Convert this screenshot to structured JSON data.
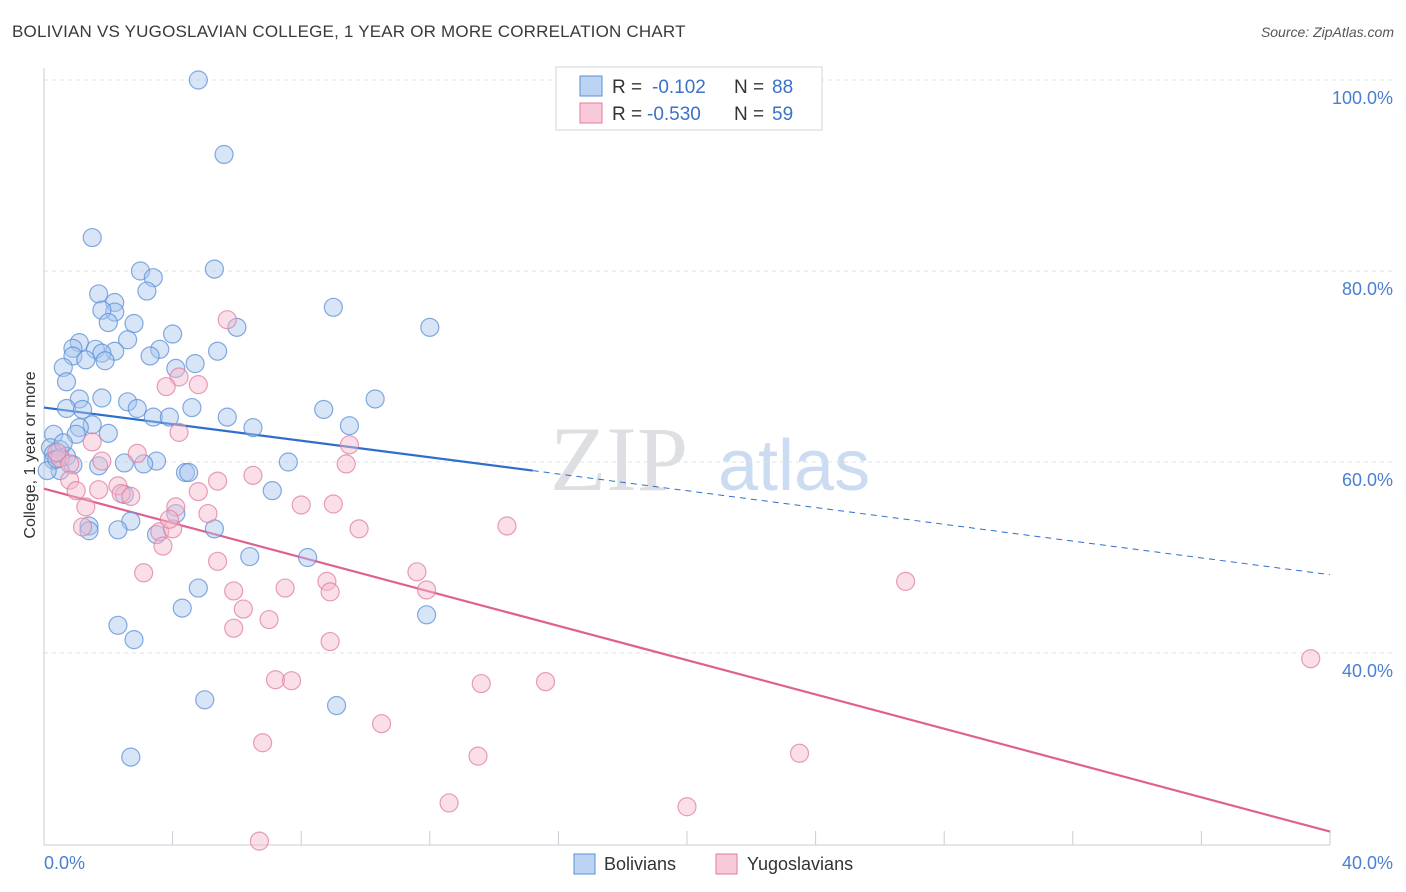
{
  "title": "BOLIVIAN VS YUGOSLAVIAN COLLEGE, 1 YEAR OR MORE CORRELATION CHART",
  "source": "Source: ZipAtlas.com",
  "watermark": {
    "zip": "ZIP",
    "atlas": "atlas"
  },
  "colors": {
    "blue_fill": "#a9c6ee",
    "blue_stroke": "#5b8fd6",
    "blue_line": "#2f6fcc",
    "pink_fill": "#f4b8cb",
    "pink_stroke": "#e07d9f",
    "pink_line": "#e0608f",
    "axis_text": "#4a7fd0",
    "grid": "#dde3ea"
  },
  "legend": {
    "rows": [
      {
        "r_label": "R =",
        "r_value": "-0.102",
        "n_label": "N =",
        "n_value": "88",
        "series": "blue"
      },
      {
        "r_label": "R =",
        "r_value": "-0.530",
        "n_label": "N =",
        "n_value": "59",
        "series": "pink"
      }
    ]
  },
  "bottom_legend": [
    {
      "label": "Bolivians",
      "series": "blue"
    },
    {
      "label": "Yugoslavians",
      "series": "pink"
    }
  ],
  "chart_data": {
    "type": "scatter",
    "title": "BOLIVIAN VS YUGOSLAVIAN COLLEGE, 1 YEAR OR MORE CORRELATION CHART",
    "xlabel": "",
    "ylabel": "College, 1 year or more",
    "xlim": [
      0,
      40
    ],
    "ylim": [
      20,
      103
    ],
    "x_tick_labels": [
      "0.0%",
      "40.0%"
    ],
    "y_ticks": [
      40,
      60,
      80,
      100
    ],
    "y_tick_labels": [
      "40.0%",
      "60.0%",
      "80.0%",
      "100.0%"
    ],
    "grid": true,
    "series": [
      {
        "name": "Bolivians",
        "color": "blue",
        "trend": {
          "x0": 0,
          "y0": 65.7,
          "x1": 15.2,
          "y1": 59.1,
          "dash_to_x": 40,
          "dash_to_y": 48.2
        },
        "points": [
          [
            4.8,
            100
          ],
          [
            5.6,
            92.2
          ],
          [
            1.5,
            83.5
          ],
          [
            5.3,
            80.2
          ],
          [
            3.0,
            80.0
          ],
          [
            3.4,
            79.3
          ],
          [
            3.2,
            77.9
          ],
          [
            1.7,
            77.6
          ],
          [
            2.2,
            76.7
          ],
          [
            2.2,
            75.7
          ],
          [
            1.8,
            75.9
          ],
          [
            2.0,
            74.6
          ],
          [
            2.8,
            74.5
          ],
          [
            9.0,
            76.2
          ],
          [
            12.0,
            74.1
          ],
          [
            6.0,
            74.1
          ],
          [
            4.0,
            73.4
          ],
          [
            2.6,
            72.8
          ],
          [
            1.1,
            72.5
          ],
          [
            0.9,
            71.9
          ],
          [
            1.6,
            71.8
          ],
          [
            2.2,
            71.6
          ],
          [
            1.8,
            71.4
          ],
          [
            3.6,
            71.8
          ],
          [
            5.4,
            71.6
          ],
          [
            3.3,
            71.1
          ],
          [
            0.9,
            71.1
          ],
          [
            1.3,
            70.7
          ],
          [
            1.9,
            70.6
          ],
          [
            4.7,
            70.3
          ],
          [
            4.1,
            69.8
          ],
          [
            0.6,
            69.9
          ],
          [
            0.7,
            68.4
          ],
          [
            1.8,
            66.7
          ],
          [
            1.1,
            66.6
          ],
          [
            10.3,
            66.6
          ],
          [
            2.6,
            66.3
          ],
          [
            0.7,
            65.6
          ],
          [
            1.2,
            65.5
          ],
          [
            2.9,
            65.6
          ],
          [
            4.6,
            65.7
          ],
          [
            8.7,
            65.5
          ],
          [
            3.4,
            64.7
          ],
          [
            3.9,
            64.7
          ],
          [
            5.7,
            64.7
          ],
          [
            1.5,
            63.9
          ],
          [
            1.1,
            63.6
          ],
          [
            6.5,
            63.6
          ],
          [
            9.5,
            63.8
          ],
          [
            2.0,
            63.0
          ],
          [
            0.3,
            62.9
          ],
          [
            1.0,
            62.9
          ],
          [
            0.2,
            61.5
          ],
          [
            0.5,
            61.3
          ],
          [
            0.3,
            60.9
          ],
          [
            0.7,
            60.6
          ],
          [
            0.3,
            60.2
          ],
          [
            3.5,
            60.1
          ],
          [
            7.6,
            60.0
          ],
          [
            0.9,
            59.7
          ],
          [
            1.7,
            59.6
          ],
          [
            2.5,
            59.9
          ],
          [
            3.1,
            59.8
          ],
          [
            0.5,
            59.1
          ],
          [
            0.1,
            59.1
          ],
          [
            4.4,
            58.9
          ],
          [
            4.5,
            58.9
          ],
          [
            2.5,
            56.6
          ],
          [
            7.1,
            57.0
          ],
          [
            4.1,
            54.6
          ],
          [
            2.7,
            53.8
          ],
          [
            1.4,
            53.3
          ],
          [
            2.3,
            52.9
          ],
          [
            1.4,
            52.8
          ],
          [
            5.3,
            53.0
          ],
          [
            3.5,
            52.4
          ],
          [
            6.4,
            50.1
          ],
          [
            8.2,
            50.0
          ],
          [
            4.8,
            46.8
          ],
          [
            4.3,
            44.7
          ],
          [
            11.9,
            44.0
          ],
          [
            2.3,
            42.9
          ],
          [
            2.8,
            41.4
          ],
          [
            5.0,
            35.1
          ],
          [
            9.1,
            34.5
          ],
          [
            2.7,
            29.1
          ],
          [
            0.6,
            62.0
          ],
          [
            0.4,
            60.3
          ]
        ]
      },
      {
        "name": "Yugoslavians",
        "color": "pink",
        "trend": {
          "x0": 0,
          "y0": 57.2,
          "x1": 40,
          "y1": 21.3
        },
        "points": [
          [
            5.7,
            74.9
          ],
          [
            4.2,
            68.9
          ],
          [
            4.8,
            68.1
          ],
          [
            3.8,
            67.9
          ],
          [
            4.2,
            63.1
          ],
          [
            9.5,
            61.8
          ],
          [
            1.5,
            62.1
          ],
          [
            2.9,
            60.9
          ],
          [
            0.5,
            60.4
          ],
          [
            1.8,
            60.1
          ],
          [
            0.8,
            59.8
          ],
          [
            9.4,
            59.8
          ],
          [
            6.5,
            58.6
          ],
          [
            5.4,
            58.0
          ],
          [
            0.8,
            58.1
          ],
          [
            2.3,
            57.5
          ],
          [
            1.7,
            57.1
          ],
          [
            2.4,
            56.7
          ],
          [
            2.7,
            56.4
          ],
          [
            4.8,
            56.9
          ],
          [
            8.0,
            55.5
          ],
          [
            9.0,
            55.6
          ],
          [
            4.1,
            55.3
          ],
          [
            5.1,
            54.6
          ],
          [
            1.3,
            55.3
          ],
          [
            1.2,
            53.2
          ],
          [
            3.6,
            52.7
          ],
          [
            4.0,
            53.0
          ],
          [
            9.8,
            53.0
          ],
          [
            14.4,
            53.3
          ],
          [
            3.7,
            51.2
          ],
          [
            5.4,
            49.6
          ],
          [
            3.1,
            48.4
          ],
          [
            11.6,
            48.5
          ],
          [
            8.8,
            47.5
          ],
          [
            7.5,
            46.8
          ],
          [
            5.9,
            46.5
          ],
          [
            8.9,
            46.4
          ],
          [
            11.9,
            46.6
          ],
          [
            26.8,
            47.5
          ],
          [
            6.2,
            44.6
          ],
          [
            7.0,
            43.5
          ],
          [
            5.9,
            42.6
          ],
          [
            8.9,
            41.2
          ],
          [
            39.4,
            39.4
          ],
          [
            7.2,
            37.2
          ],
          [
            7.7,
            37.1
          ],
          [
            13.6,
            36.8
          ],
          [
            15.6,
            37.0
          ],
          [
            10.5,
            32.6
          ],
          [
            6.8,
            30.6
          ],
          [
            23.5,
            29.5
          ],
          [
            13.5,
            29.2
          ],
          [
            12.6,
            24.3
          ],
          [
            20.0,
            23.9
          ],
          [
            6.7,
            20.3
          ],
          [
            1.0,
            57.0
          ],
          [
            3.9,
            54.0
          ],
          [
            0.4,
            61.0
          ]
        ]
      }
    ]
  }
}
